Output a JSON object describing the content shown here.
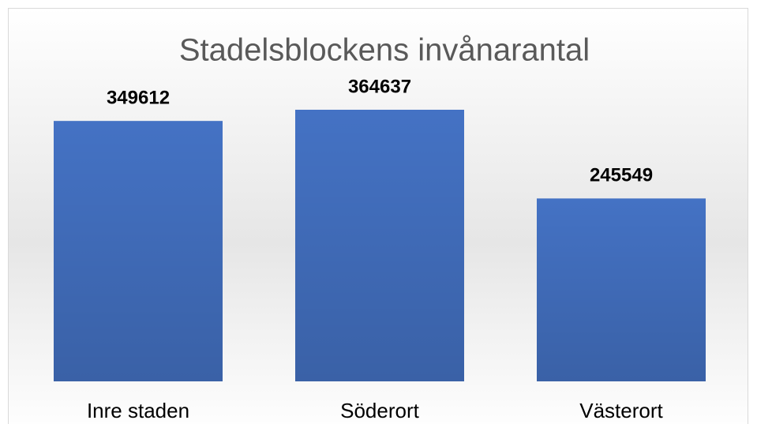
{
  "chart_data": {
    "type": "bar",
    "title": "Stadelsblockens invånarantal",
    "categories": [
      "Inre staden",
      "Söderort",
      "Västerort"
    ],
    "values": [
      349612,
      364637,
      245549
    ],
    "color": "#4472c4"
  }
}
